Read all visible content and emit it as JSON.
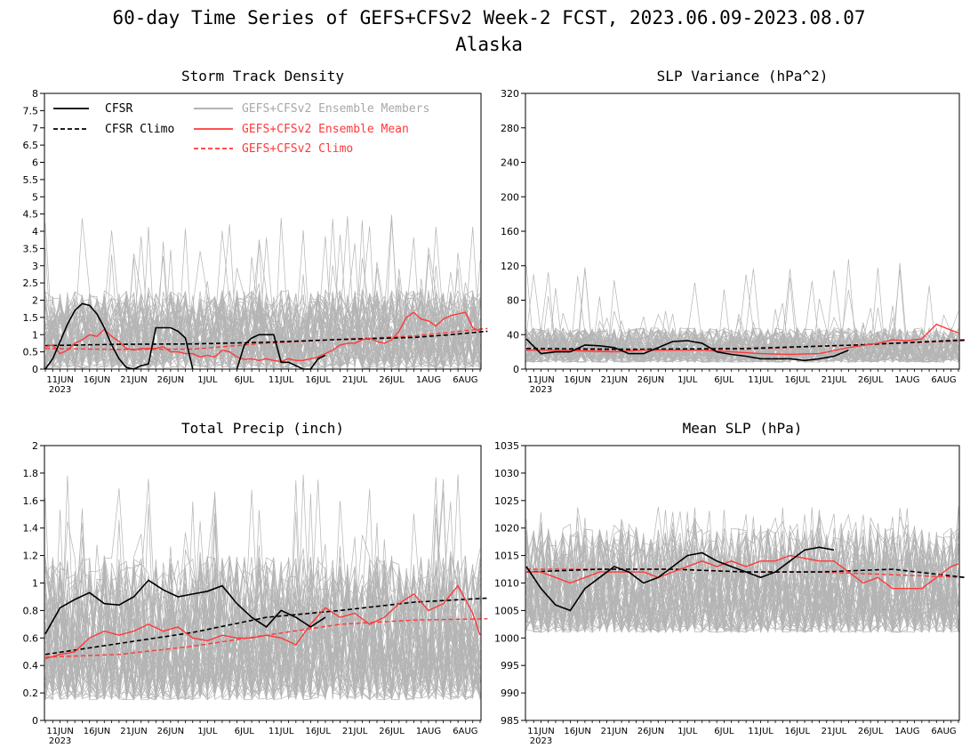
{
  "figure": {
    "title": "60-day Time Series of GEFS+CFSv2 Week-2 FCST, 2023.06.09-2023.08.07",
    "subtitle": "Alaska"
  },
  "colors": {
    "cfsr": "#000000",
    "members": "#a8a8a8",
    "ensemble_mean": "#ff3838",
    "climo_model": "#ff3838"
  },
  "legend": {
    "position": "top-left of Storm Track Density panel",
    "items": [
      {
        "label": "CFSR",
        "style": "solid",
        "color": "#000000"
      },
      {
        "label": "CFSR Climo",
        "style": "dashed",
        "color": "#000000"
      },
      {
        "label": "GEFS+CFSv2 Ensemble Members",
        "style": "solid",
        "color": "#a8a8a8"
      },
      {
        "label": "GEFS+CFSv2 Ensemble Mean",
        "style": "solid",
        "color": "#ff3838"
      },
      {
        "label": "GEFS+CFSv2 Climo",
        "style": "dashed",
        "color": "#ff3838"
      }
    ]
  },
  "x_ticks": [
    "11JUN",
    "16JUN",
    "21JUN",
    "26JUN",
    "1JUL",
    "6JUL",
    "11JUL",
    "16JUL",
    "21JUL",
    "26JUL",
    "1AUG",
    "6AUG"
  ],
  "x_year": "2023",
  "chart_data": [
    {
      "type": "line",
      "title": "Storm Track Density",
      "ylim": [
        0,
        8
      ],
      "yticks": [
        "0",
        "0.5",
        "1",
        "1.5",
        "2",
        "2.5",
        "3",
        "3.5",
        "4",
        "4.5",
        "5",
        "5.5",
        "6",
        "6.5",
        "7",
        "7.5",
        "8"
      ],
      "ytick_values": [
        0,
        0.5,
        1,
        1.5,
        2,
        2.5,
        3,
        3.5,
        4,
        4.5,
        5,
        5.5,
        6,
        6.5,
        7,
        7.5,
        8
      ],
      "grid": false,
      "member_spread": {
        "lo": 0.02,
        "hi": 2.3,
        "peak": 4.5
      },
      "series": [
        {
          "name": "CFSR",
          "x": [
            0,
            1,
            2,
            3,
            4,
            5,
            6,
            7,
            8,
            9,
            10,
            11,
            12,
            13,
            14,
            15,
            16,
            17,
            18,
            19,
            20,
            21,
            22,
            23,
            24,
            25,
            26,
            27,
            28,
            29,
            30,
            31,
            32,
            33,
            34,
            35,
            36,
            37,
            38,
            39,
            40,
            41,
            42,
            43
          ],
          "y": [
            0,
            0.3,
            0.8,
            1.3,
            1.7,
            1.9,
            1.85,
            1.6,
            1.2,
            0.7,
            0.3,
            0.05,
            0,
            0.1,
            0.15,
            1.2,
            1.2,
            1.2,
            1.1,
            0.9,
            0,
            null,
            null,
            null,
            null,
            null,
            0,
            0.7,
            0.9,
            1.0,
            1.0,
            1.0,
            0.2,
            0.2,
            0.1,
            0,
            0,
            0.3,
            0.4,
            null,
            null,
            null,
            null,
            null
          ]
        },
        {
          "name": "CFSR Climo",
          "x": [
            0,
            10,
            20,
            30,
            40,
            50,
            55,
            60
          ],
          "y": [
            0.68,
            0.72,
            0.73,
            0.78,
            0.86,
            0.92,
            1.0,
            1.1
          ]
        },
        {
          "name": "GEFS+CFSv2 Ensemble Mean",
          "x": [
            0,
            1,
            2,
            3,
            4,
            5,
            6,
            7,
            8,
            9,
            10,
            11,
            12,
            13,
            14,
            15,
            16,
            17,
            18,
            19,
            20,
            21,
            22,
            23,
            24,
            25,
            26,
            27,
            28,
            29,
            30,
            31,
            32,
            33,
            34,
            35,
            36,
            37,
            38,
            39,
            40,
            41,
            42,
            43,
            44,
            45,
            46,
            47,
            48,
            49,
            50,
            51,
            52,
            53,
            54,
            55,
            56,
            57,
            58,
            59
          ],
          "y": [
            0.65,
            0.7,
            0.45,
            0.55,
            0.75,
            0.85,
            1.0,
            0.95,
            1.15,
            0.95,
            0.8,
            0.6,
            0.55,
            0.6,
            0.6,
            0.6,
            0.65,
            0.5,
            0.5,
            0.45,
            0.45,
            0.35,
            0.4,
            0.35,
            0.55,
            0.5,
            0.35,
            0.28,
            0.3,
            0.25,
            0.3,
            0.25,
            0.22,
            0.3,
            0.25,
            0.25,
            0.3,
            0.35,
            0.45,
            0.55,
            0.7,
            0.75,
            0.75,
            0.85,
            0.9,
            0.8,
            0.75,
            0.85,
            1.1,
            1.5,
            1.65,
            1.45,
            1.4,
            1.25,
            1.45,
            1.55,
            1.6,
            1.65,
            1.2,
            1.1
          ]
        },
        {
          "name": "GEFS+CFSv2 Climo",
          "x": [
            0,
            10,
            20,
            30,
            40,
            50,
            60
          ],
          "y": [
            0.6,
            0.57,
            0.58,
            0.75,
            0.86,
            0.96,
            1.18
          ]
        }
      ]
    },
    {
      "type": "line",
      "title": "SLP Variance (hPa^2)",
      "ylim": [
        0,
        320
      ],
      "yticks": [
        "0",
        "40",
        "80",
        "120",
        "160",
        "200",
        "240",
        "280",
        "320"
      ],
      "ytick_values": [
        0,
        40,
        80,
        120,
        160,
        200,
        240,
        280,
        320
      ],
      "grid": false,
      "member_spread": {
        "lo": 8,
        "hi": 48,
        "peak": 130
      },
      "series": [
        {
          "name": "CFSR",
          "x": [
            0,
            2,
            4,
            6,
            8,
            10,
            12,
            14,
            16,
            18,
            20,
            22,
            24,
            26,
            28,
            30,
            32,
            34,
            36,
            38,
            40,
            42,
            44
          ],
          "y": [
            35,
            18,
            20,
            20,
            28,
            27,
            25,
            18,
            18,
            25,
            32,
            33,
            30,
            20,
            17,
            15,
            12,
            12,
            12,
            10,
            12,
            15,
            22
          ]
        },
        {
          "name": "CFSR Climo",
          "x": [
            0,
            15,
            30,
            45,
            60
          ],
          "y": [
            24,
            23,
            24,
            28,
            34
          ]
        },
        {
          "name": "GEFS+CFSv2 Ensemble Mean",
          "x": [
            0,
            4,
            8,
            12,
            16,
            20,
            24,
            28,
            32,
            36,
            40,
            44,
            48,
            50,
            52,
            54,
            56,
            58,
            59
          ],
          "y": [
            22,
            22,
            21,
            20,
            22,
            22,
            22,
            20,
            18,
            17,
            18,
            25,
            30,
            34,
            33,
            35,
            52,
            45,
            42
          ]
        },
        {
          "name": "GEFS+CFSv2 Climo",
          "x": [
            0,
            15,
            30,
            45,
            60
          ],
          "y": [
            22,
            22,
            23,
            28,
            33
          ]
        }
      ]
    },
    {
      "type": "line",
      "title": "Total Precip (inch)",
      "ylim": [
        0,
        2
      ],
      "yticks": [
        "0",
        "0.2",
        "0.4",
        "0.6",
        "0.8",
        "1",
        "1.2",
        "1.4",
        "1.6",
        "1.8",
        "2"
      ],
      "ytick_values": [
        0,
        0.2,
        0.4,
        0.6,
        0.8,
        1,
        1.2,
        1.4,
        1.6,
        1.8,
        2
      ],
      "grid": false,
      "member_spread": {
        "lo": 0.15,
        "hi": 1.2,
        "peak": 1.8
      },
      "series": [
        {
          "name": "CFSR",
          "x": [
            0,
            2,
            4,
            6,
            8,
            10,
            12,
            14,
            16,
            18,
            20,
            22,
            24,
            26,
            28,
            30,
            32,
            34,
            36,
            38,
            40,
            42,
            44
          ],
          "y": [
            0.63,
            0.82,
            0.88,
            0.93,
            0.85,
            0.84,
            0.9,
            1.02,
            0.95,
            0.9,
            0.92,
            0.94,
            0.98,
            0.85,
            0.75,
            0.68,
            0.8,
            0.75,
            0.68,
            0.75,
            null,
            null,
            null
          ]
        },
        {
          "name": "CFSR Climo",
          "x": [
            0,
            10,
            20,
            30,
            40,
            50,
            60
          ],
          "y": [
            0.48,
            0.56,
            0.64,
            0.75,
            0.8,
            0.86,
            0.89
          ]
        },
        {
          "name": "GEFS+CFSv2 Ensemble Mean",
          "x": [
            0,
            2,
            4,
            6,
            8,
            10,
            12,
            14,
            16,
            18,
            20,
            22,
            24,
            26,
            28,
            30,
            32,
            34,
            36,
            38,
            40,
            42,
            44,
            46,
            48,
            50,
            52,
            54,
            56,
            58,
            59
          ],
          "y": [
            0.45,
            0.48,
            0.5,
            0.6,
            0.65,
            0.62,
            0.65,
            0.7,
            0.65,
            0.68,
            0.6,
            0.58,
            0.62,
            0.6,
            0.6,
            0.62,
            0.6,
            0.55,
            0.7,
            0.82,
            0.75,
            0.78,
            0.7,
            0.75,
            0.85,
            0.92,
            0.8,
            0.85,
            0.98,
            0.78,
            0.62
          ]
        },
        {
          "name": "GEFS+CFSv2 Climo",
          "x": [
            0,
            10,
            20,
            30,
            40,
            50,
            60
          ],
          "y": [
            0.46,
            0.48,
            0.54,
            0.62,
            0.7,
            0.73,
            0.74
          ]
        }
      ]
    },
    {
      "type": "line",
      "title": "Mean SLP (hPa)",
      "ylim": [
        985,
        1035
      ],
      "yticks": [
        "985",
        "990",
        "995",
        "1000",
        "1005",
        "1010",
        "1015",
        "1020",
        "1025",
        "1030",
        "1035"
      ],
      "ytick_values": [
        985,
        990,
        995,
        1000,
        1005,
        1010,
        1015,
        1020,
        1025,
        1030,
        1035
      ],
      "grid": false,
      "member_spread": {
        "lo": 1001,
        "hi": 1020,
        "peak": 1024
      },
      "series": [
        {
          "name": "CFSR",
          "x": [
            0,
            2,
            4,
            6,
            8,
            10,
            12,
            14,
            16,
            18,
            20,
            22,
            24,
            26,
            28,
            30,
            32,
            34,
            36,
            38,
            40,
            42,
            44
          ],
          "y": [
            1013,
            1009,
            1006,
            1005,
            1009,
            1011,
            1013,
            1012,
            1010,
            1011,
            1013,
            1015,
            1015.5,
            1014,
            1013,
            1012,
            1011,
            1012,
            1014,
            1016,
            1016.5,
            1016,
            null
          ]
        },
        {
          "name": "CFSR Climo",
          "x": [
            0,
            10,
            20,
            30,
            40,
            50,
            60
          ],
          "y": [
            1012,
            1012.5,
            1012.5,
            1012,
            1012,
            1012.5,
            1011
          ]
        },
        {
          "name": "GEFS+CFSv2 Ensemble Mean",
          "x": [
            0,
            2,
            4,
            6,
            8,
            10,
            12,
            14,
            16,
            18,
            20,
            22,
            24,
            26,
            28,
            30,
            32,
            34,
            36,
            38,
            40,
            42,
            44,
            46,
            48,
            50,
            52,
            54,
            56,
            58,
            59
          ],
          "y": [
            1012,
            1012,
            1011,
            1010,
            1011,
            1012,
            1012,
            1012,
            1012,
            1011,
            1012,
            1013,
            1014,
            1013,
            1014,
            1013,
            1014,
            1014,
            1015,
            1014.5,
            1014,
            1014,
            1012,
            1010,
            1011,
            1009,
            1009,
            1009,
            1011,
            1013,
            1013.5
          ]
        },
        {
          "name": "GEFS+CFSv2 Climo",
          "x": [
            0,
            10,
            20,
            30,
            40,
            50,
            60
          ],
          "y": [
            1012.5,
            1012.5,
            1012.5,
            1012,
            1012,
            1011.5,
            1011
          ]
        }
      ]
    }
  ]
}
